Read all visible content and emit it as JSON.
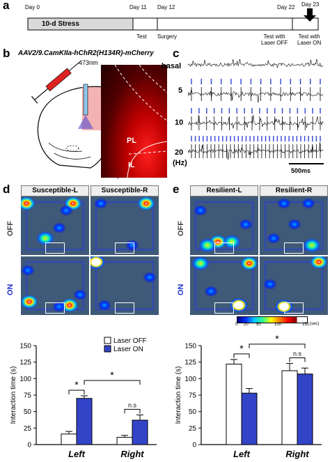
{
  "panels": {
    "a": "a",
    "b": "b",
    "c": "c",
    "d": "d",
    "e": "e"
  },
  "timeline": {
    "day0": "Day 0",
    "day11": "Day 11",
    "day12": "Day 12",
    "day22": "Day 22",
    "day23": "Day 23",
    "stress": "10-d Stress",
    "test": "Test",
    "surgery": "Surgery",
    "test_off": "Test with\nLaser OFF",
    "test_on": "Test with\nLaser ON"
  },
  "virus": {
    "construct": "AAV2/9.CamKIIa-hChR2(H134R)-mCherry",
    "wavelength": "473nm",
    "pl": "PL",
    "il": "IL"
  },
  "traces": {
    "labels": [
      "basal",
      "5",
      "10",
      "20"
    ],
    "hz": "(Hz)",
    "scale": "500ms",
    "stim_counts": [
      0,
      14,
      18,
      34
    ]
  },
  "heatmaps_d": {
    "cols": [
      "Susceptible-L",
      "Susceptible-R"
    ],
    "rows": [
      "OFF",
      "ON"
    ]
  },
  "heatmaps_e": {
    "cols": [
      "Resilient-L",
      "Resilient-R"
    ],
    "rows": [
      "OFF",
      "ON"
    ]
  },
  "colorbar": {
    "ticks": [
      "0",
      "20",
      "50",
      "100",
      "150"
    ],
    "unit": "(sec)"
  },
  "chart_data": [
    {
      "type": "bar",
      "categories": [
        "Left",
        "Right"
      ],
      "series": [
        {
          "name": "Laser OFF",
          "values": [
            16,
            11
          ],
          "errors": [
            4,
            3
          ]
        },
        {
          "name": "Laser ON",
          "values": [
            70,
            37
          ],
          "errors": [
            4,
            8
          ]
        }
      ],
      "ylabel": "Interaction time (s)",
      "ylim": [
        0,
        150
      ],
      "yticks": [
        "0",
        "25",
        "50",
        "75",
        "100",
        "125",
        "150"
      ],
      "annotations": [
        "*",
        "*",
        "n.s"
      ],
      "legend": "top-right"
    },
    {
      "type": "bar",
      "categories": [
        "Left",
        "Right"
      ],
      "series": [
        {
          "name": "Laser OFF",
          "values": [
            122,
            112
          ],
          "errors": [
            7,
            11
          ]
        },
        {
          "name": "Laser ON",
          "values": [
            78,
            107
          ],
          "errors": [
            7,
            9
          ]
        }
      ],
      "ylabel": "Interaction time (s)",
      "ylim": [
        0,
        150
      ],
      "yticks": [
        "0",
        "25",
        "50",
        "75",
        "100",
        "125",
        "150"
      ],
      "annotations": [
        "*",
        "*",
        "n.s"
      ]
    }
  ],
  "colors": {
    "laser_on": "#3344c8",
    "laser_off": "#ffffff",
    "stim": "#3a4fd8",
    "heatmap_bg": "#3f5a78"
  }
}
